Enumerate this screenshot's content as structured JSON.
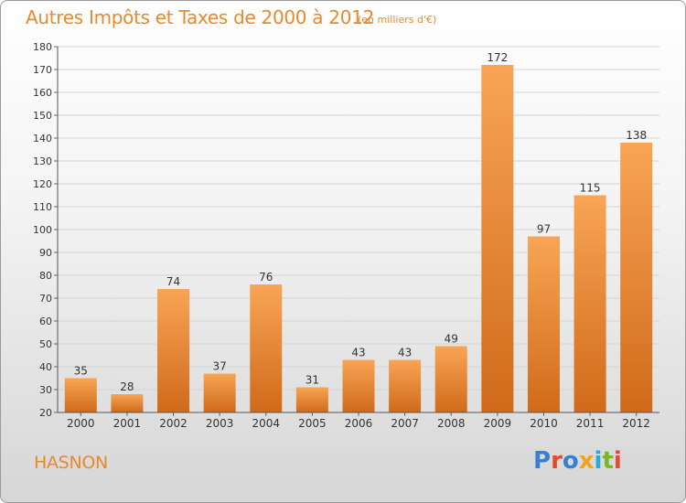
{
  "header": {
    "title": "Autres Impôts et Taxes de 2000 à 2012",
    "subtitle": "(en milliers d'€)"
  },
  "footer": {
    "commune": "HASNON",
    "logo": "Proxiti",
    "logo_colors": [
      "#3a7fd0",
      "#e8482c",
      "#3a7fd0",
      "#f3a31a",
      "#2aa8d8",
      "#7ab52a",
      "#e8482c"
    ]
  },
  "colors": {
    "bar_light": "#f8a555",
    "bar_dark": "#d06a1a",
    "accent": "#e8892c"
  },
  "chart_data": {
    "type": "bar",
    "categories": [
      "2000",
      "2001",
      "2002",
      "2003",
      "2004",
      "2005",
      "2006",
      "2007",
      "2008",
      "2009",
      "2010",
      "2011",
      "2012"
    ],
    "values": [
      35,
      28,
      74,
      37,
      76,
      31,
      43,
      43,
      49,
      172,
      97,
      115,
      138
    ],
    "data_labels": [
      "35",
      "28",
      "74",
      "37",
      "76",
      "31",
      "43",
      "43",
      "49",
      "172",
      "97",
      "115",
      "138"
    ],
    "y_ticks": [
      "20",
      "30",
      "40",
      "50",
      "60",
      "70",
      "80",
      "90",
      "100",
      "110",
      "120",
      "130",
      "140",
      "150",
      "160",
      "170",
      "180"
    ],
    "ylim": [
      20,
      180
    ],
    "grid": true,
    "title": "Autres Impôts et Taxes de 2000 à 2012",
    "xlabel": "",
    "ylabel": ""
  }
}
